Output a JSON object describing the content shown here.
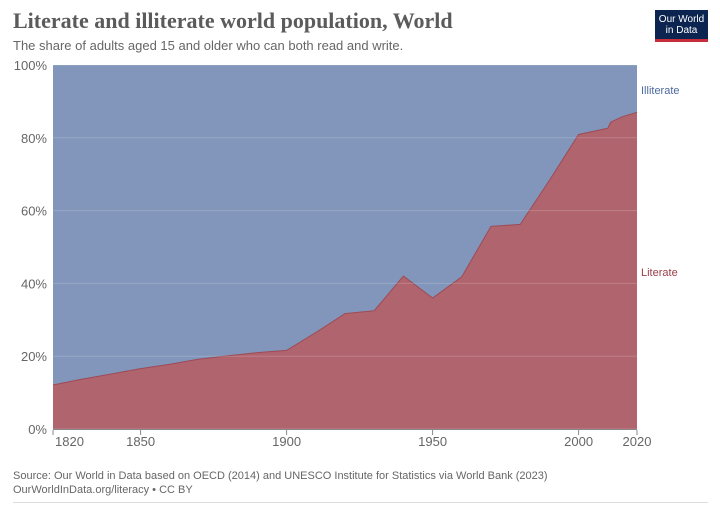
{
  "title": "Literate and illiterate world population, World",
  "subtitle": "The share of adults aged 15 and older who can both read and write.",
  "logo": {
    "line1": "Our World",
    "line2": "in Data"
  },
  "source": "Source: Our World in Data based on OECD (2014) and UNESCO Institute for Statistics via World Bank (2023)",
  "url": "OurWorldInData.org/literacy • CC BY",
  "colors": {
    "literate": "#b0646e",
    "illiterate": "#8196ba",
    "literate_line": "#9e4a55",
    "illiterate_label": "#4c6a9c",
    "literate_label": "#9a3e48"
  },
  "chart_data": {
    "type": "area",
    "stacked": true,
    "title": "Literate and illiterate world population, World",
    "xlabel": "",
    "ylabel": "",
    "xlim": [
      1820,
      2020
    ],
    "ylim": [
      0,
      100
    ],
    "x_ticks": [
      1820,
      1850,
      1900,
      1950,
      2000,
      2020
    ],
    "y_ticks": [
      {
        "value": 0,
        "label": "0%"
      },
      {
        "value": 20,
        "label": "20%"
      },
      {
        "value": 40,
        "label": "40%"
      },
      {
        "value": 60,
        "label": "60%"
      },
      {
        "value": 80,
        "label": "80%"
      },
      {
        "value": 100,
        "label": "100%"
      }
    ],
    "series": [
      {
        "name": "Literate",
        "points": [
          [
            1820,
            12.1
          ],
          [
            1830,
            13.7
          ],
          [
            1840,
            15.1
          ],
          [
            1850,
            16.6
          ],
          [
            1860,
            17.8
          ],
          [
            1870,
            19.2
          ],
          [
            1880,
            20.1
          ],
          [
            1890,
            21.0
          ],
          [
            1900,
            21.6
          ],
          [
            1910,
            26.5
          ],
          [
            1920,
            31.7
          ],
          [
            1930,
            32.5
          ],
          [
            1940,
            42.0
          ],
          [
            1950,
            36.0
          ],
          [
            1960,
            41.8
          ],
          [
            1970,
            55.7
          ],
          [
            1980,
            56.2
          ],
          [
            1990,
            68.3
          ],
          [
            2000,
            80.9
          ],
          [
            2010,
            82.6
          ],
          [
            2011,
            84.3
          ],
          [
            2015,
            85.8
          ],
          [
            2020,
            87.0
          ]
        ]
      },
      {
        "name": "Illiterate",
        "points": [
          [
            1820,
            87.9
          ],
          [
            1830,
            86.3
          ],
          [
            1840,
            84.9
          ],
          [
            1850,
            83.4
          ],
          [
            1860,
            82.2
          ],
          [
            1870,
            80.8
          ],
          [
            1880,
            79.9
          ],
          [
            1890,
            79.0
          ],
          [
            1900,
            78.4
          ],
          [
            1910,
            73.5
          ],
          [
            1920,
            68.3
          ],
          [
            1930,
            67.5
          ],
          [
            1940,
            58.0
          ],
          [
            1950,
            64.0
          ],
          [
            1960,
            58.2
          ],
          [
            1970,
            44.3
          ],
          [
            1980,
            43.8
          ],
          [
            1990,
            31.7
          ],
          [
            2000,
            19.1
          ],
          [
            2010,
            17.4
          ],
          [
            2011,
            15.7
          ],
          [
            2015,
            14.2
          ],
          [
            2020,
            13.0
          ]
        ]
      }
    ]
  }
}
